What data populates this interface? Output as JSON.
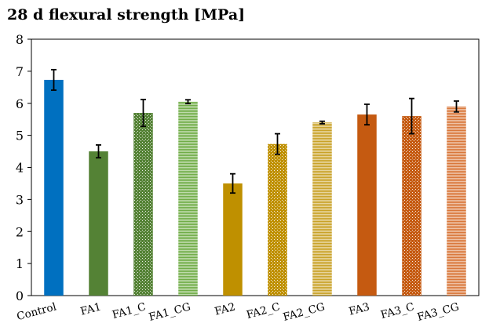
{
  "chart_data": {
    "type": "bar",
    "title": "28 d flexural strength [MPa]",
    "xlabel": "",
    "ylabel": "",
    "ylim": [
      0,
      8
    ],
    "yticks": [
      0,
      1,
      2,
      3,
      4,
      5,
      6,
      7,
      8
    ],
    "grid": false,
    "legend": "none",
    "categories": [
      "Control",
      "FA1",
      "FA1_C",
      "FA1_CG",
      "FA2",
      "FA2_C",
      "FA2_CG",
      "FA3",
      "FA3_C",
      "FA3_CG"
    ],
    "values": [
      6.73,
      4.5,
      5.7,
      6.05,
      3.5,
      4.73,
      5.4,
      5.65,
      5.6,
      5.9
    ],
    "errors": [
      0.32,
      0.2,
      0.42,
      0.06,
      0.3,
      0.32,
      0.04,
      0.32,
      0.55,
      0.17
    ],
    "bar_colors": [
      "#0070C0",
      "#548235",
      "#548235",
      "#70AD47",
      "#BF9000",
      "#BF9000",
      "#C9A227",
      "#C55A11",
      "#C55A11",
      "#D9773A"
    ],
    "bar_patterns": [
      "solid",
      "solid",
      "dots",
      "stripes",
      "solid",
      "dots",
      "stripes",
      "solid",
      "dots",
      "stripes"
    ]
  }
}
